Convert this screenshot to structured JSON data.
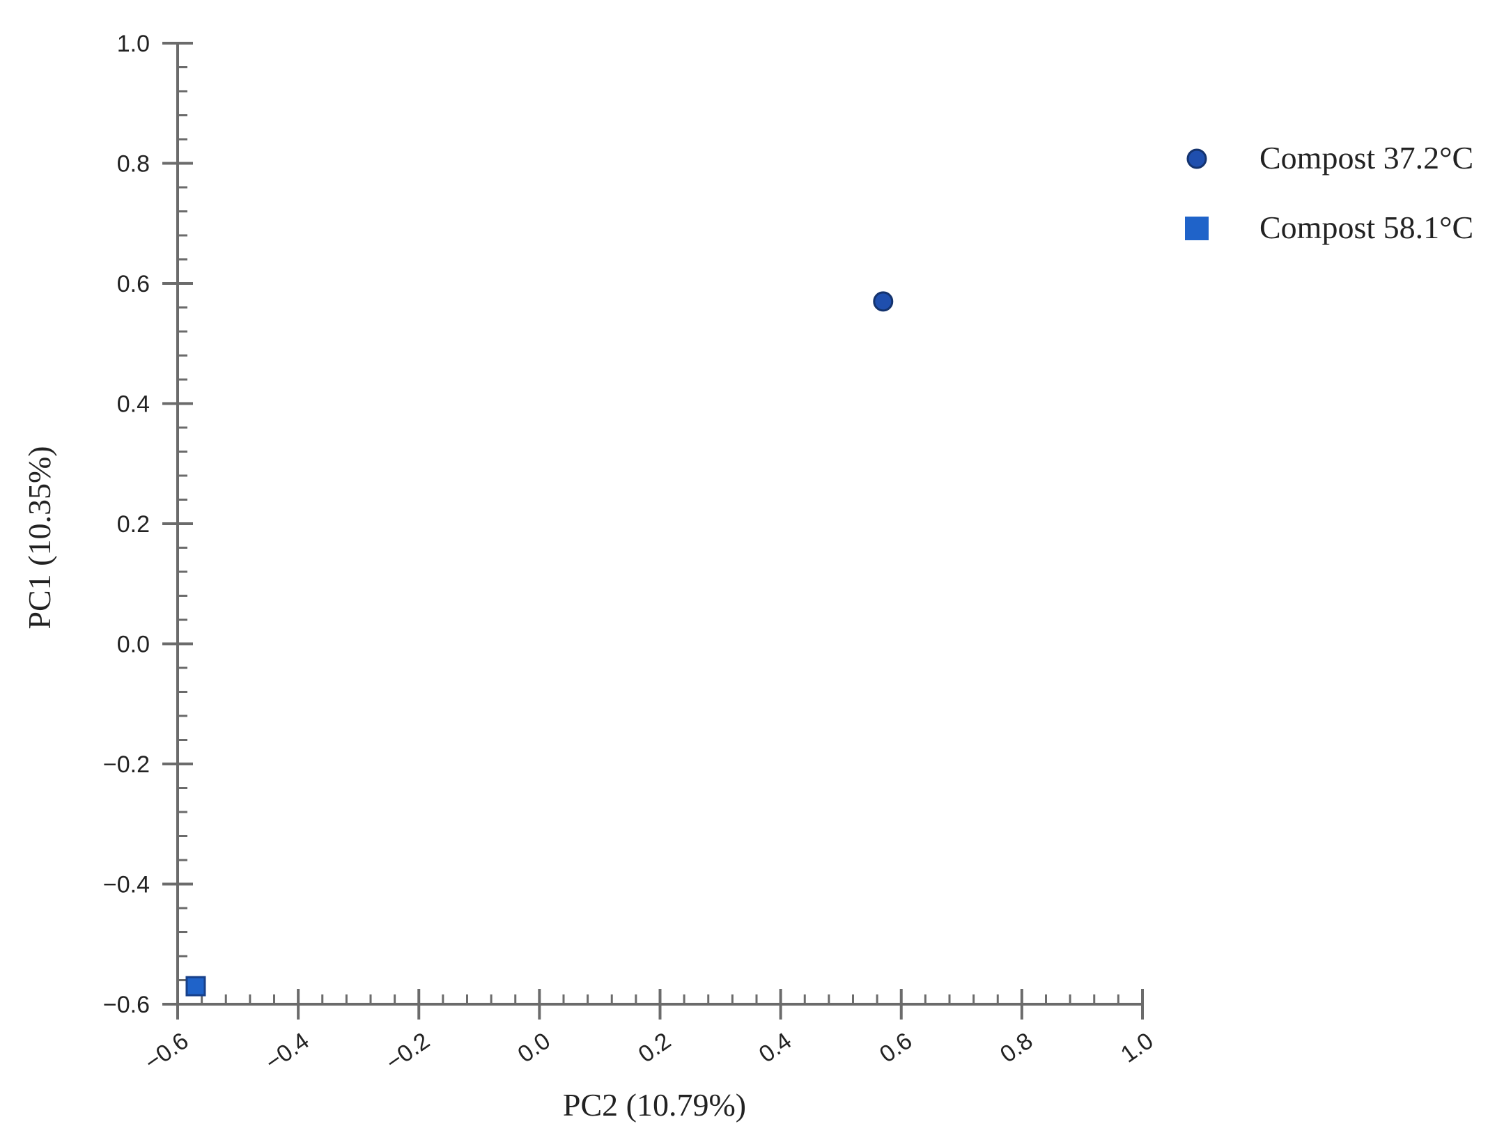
{
  "chart_data": {
    "type": "scatter",
    "xlabel": "PC2 (10.79%)",
    "ylabel": "PC1 (10.35%)",
    "xlim": [
      -0.6,
      1.0
    ],
    "ylim": [
      -0.6,
      1.0
    ],
    "xticks": [
      -0.6,
      -0.4,
      -0.2,
      0.0,
      0.2,
      0.4,
      0.6,
      0.8,
      1.0
    ],
    "yticks": [
      -0.6,
      -0.4,
      -0.2,
      0.0,
      0.2,
      0.4,
      0.6,
      0.8,
      1.0
    ],
    "xtick_labels": [
      "−0.6",
      "−0.4",
      "−0.2",
      "0.0",
      "0.2",
      "0.4",
      "0.6",
      "0.8",
      "1.0"
    ],
    "ytick_labels": [
      "−0.6",
      "−0.4",
      "−0.2",
      "0.0",
      "0.2",
      "0.4",
      "0.6",
      "0.8",
      "1.0"
    ],
    "grid": false,
    "legend_position": "top-right",
    "series": [
      {
        "name": "Compost 37.2°C",
        "marker": "circle",
        "color": "#1f4fae",
        "edge_color": "#14336e",
        "x": [
          0.57
        ],
        "y": [
          0.57
        ]
      },
      {
        "name": "Compost 58.1°C",
        "marker": "square",
        "color": "#1f63c9",
        "edge_color": "#17408a",
        "x": [
          -0.57
        ],
        "y": [
          -0.57
        ]
      }
    ]
  }
}
